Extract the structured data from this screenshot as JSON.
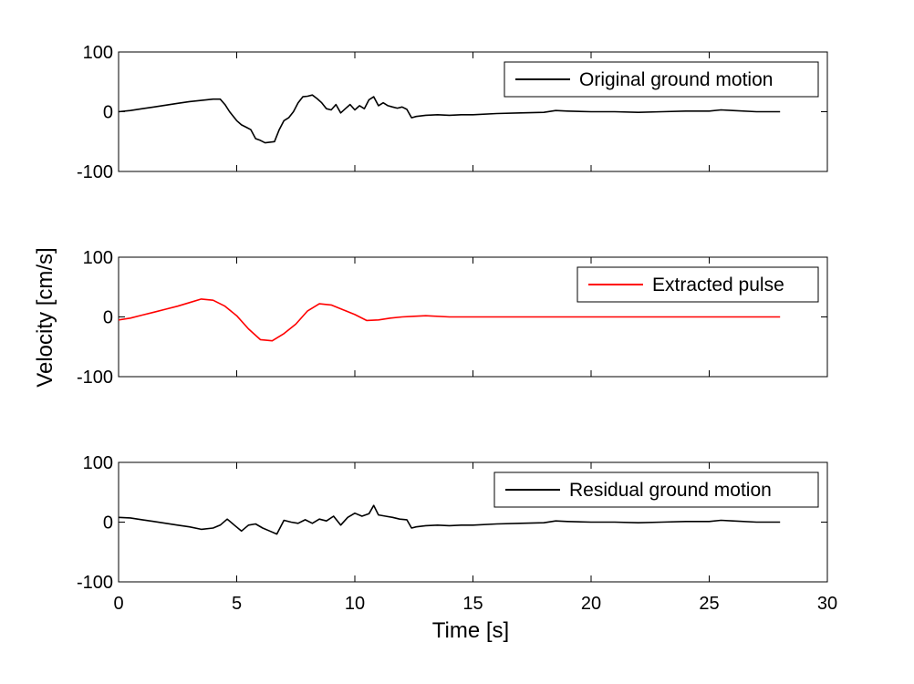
{
  "chart_data": {
    "type": "line",
    "xlabel": "Time [s]",
    "ylabel": "Velocity [cm/s]",
    "xlim": [
      0,
      30
    ],
    "xticks": [
      "0",
      "5",
      "10",
      "15",
      "20",
      "25",
      "30"
    ],
    "grid": false,
    "panels": [
      {
        "ylim": [
          -100,
          100
        ],
        "yticks": [
          "100",
          "0",
          "-100"
        ],
        "legend": {
          "label": "Original ground motion",
          "placement": "top-right"
        },
        "series": [
          {
            "name": "Original ground motion",
            "color": "#000000",
            "x": [
              0,
              0.5,
              1,
              1.5,
              2,
              2.5,
              3,
              3.5,
              4,
              4.3,
              4.5,
              4.7,
              5,
              5.2,
              5.4,
              5.6,
              5.8,
              6,
              6.2,
              6.4,
              6.6,
              6.8,
              7,
              7.2,
              7.4,
              7.6,
              7.8,
              8,
              8.2,
              8.4,
              8.6,
              8.8,
              9,
              9.2,
              9.4,
              9.6,
              9.8,
              10,
              10.2,
              10.4,
              10.6,
              10.8,
              11,
              11.2,
              11.4,
              11.6,
              11.8,
              12,
              12.2,
              12.4,
              12.6,
              13,
              13.5,
              14,
              14.5,
              15,
              16,
              17,
              18,
              18.5,
              19,
              20,
              21,
              22,
              23,
              24,
              25,
              25.5,
              26,
              27,
              28
            ],
            "y": [
              0,
              2,
              5,
              8,
              11,
              14,
              17,
              19,
              21,
              21,
              12,
              0,
              -15,
              -22,
              -26,
              -30,
              -45,
              -48,
              -52,
              -51,
              -50,
              -30,
              -15,
              -10,
              0,
              15,
              25,
              26,
              28,
              22,
              15,
              5,
              3,
              12,
              -2,
              5,
              12,
              3,
              10,
              5,
              20,
              25,
              10,
              15,
              10,
              8,
              6,
              8,
              4,
              -10,
              -8,
              -6,
              -5,
              -6,
              -5,
              -5,
              -3,
              -2,
              -1,
              2,
              1,
              0,
              0,
              -1,
              0,
              1,
              1,
              3,
              2,
              0,
              0
            ]
          }
        ]
      },
      {
        "ylim": [
          -100,
          100
        ],
        "yticks": [
          "100",
          "0",
          "-100"
        ],
        "legend": {
          "label": "Extracted pulse",
          "placement": "top-right"
        },
        "series": [
          {
            "name": "Extracted pulse",
            "color": "#ff0000",
            "x": [
              0,
              0.5,
              1,
              1.5,
              2,
              2.5,
              3,
              3.5,
              4,
              4.5,
              5,
              5.5,
              6,
              6.5,
              7,
              7.5,
              8,
              8.5,
              9,
              9.5,
              10,
              10.5,
              11,
              11.5,
              12,
              12.5,
              13,
              14,
              15,
              16,
              17,
              18,
              19,
              20,
              21,
              22,
              23,
              24,
              25,
              26,
              27,
              28
            ],
            "y": [
              -5,
              -2,
              3,
              8,
              13,
              18,
              24,
              30,
              28,
              18,
              2,
              -20,
              -38,
              -40,
              -28,
              -12,
              10,
              22,
              20,
              12,
              4,
              -6,
              -5,
              -2,
              0,
              1,
              2,
              0,
              0,
              0,
              0,
              0,
              0,
              0,
              0,
              0,
              0,
              0,
              0,
              0,
              0,
              0
            ]
          }
        ]
      },
      {
        "ylim": [
          -100,
          100
        ],
        "yticks": [
          "100",
          "0",
          "-100"
        ],
        "legend": {
          "label": "Residual ground motion",
          "placement": "top-right"
        },
        "series": [
          {
            "name": "Residual ground motion",
            "color": "#000000",
            "x": [
              0,
              0.5,
              1,
              1.5,
              2,
              2.5,
              3,
              3.5,
              4,
              4.3,
              4.6,
              4.9,
              5.2,
              5.5,
              5.8,
              6.1,
              6.4,
              6.7,
              7,
              7.3,
              7.6,
              7.9,
              8.2,
              8.5,
              8.8,
              9.1,
              9.4,
              9.7,
              10,
              10.3,
              10.6,
              10.8,
              11,
              11.3,
              11.6,
              11.9,
              12.2,
              12.4,
              12.6,
              13,
              13.5,
              14,
              14.5,
              15,
              16,
              17,
              18,
              18.5,
              19,
              20,
              21,
              22,
              23,
              24,
              25,
              25.5,
              26,
              27,
              28
            ],
            "y": [
              8,
              7,
              4,
              1,
              -2,
              -5,
              -8,
              -12,
              -10,
              -5,
              5,
              -5,
              -15,
              -5,
              -3,
              -10,
              -15,
              -20,
              3,
              0,
              -2,
              4,
              -2,
              5,
              2,
              10,
              -5,
              8,
              15,
              10,
              14,
              28,
              12,
              10,
              8,
              5,
              4,
              -10,
              -8,
              -6,
              -5,
              -6,
              -5,
              -5,
              -3,
              -2,
              -1,
              2,
              1,
              0,
              0,
              -1,
              0,
              1,
              1,
              3,
              2,
              0,
              0
            ]
          }
        ]
      }
    ]
  }
}
